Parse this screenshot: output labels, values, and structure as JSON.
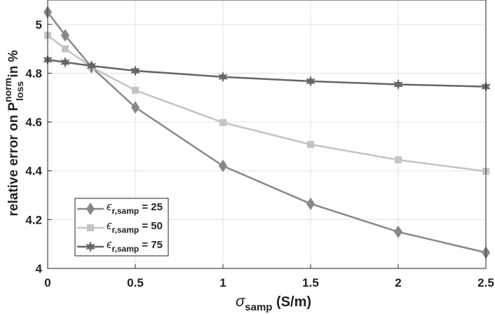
{
  "chart_data": {
    "type": "line",
    "x": [
      0,
      0.1,
      0.25,
      0.5,
      1,
      1.5,
      2,
      2.5
    ],
    "xlim": [
      0,
      2.5
    ],
    "ylim": [
      4,
      5.1
    ],
    "xticks": [
      "0",
      "0.5",
      "1",
      "1.5",
      "2",
      "2.5"
    ],
    "yticks": [
      "4",
      "4.2",
      "4.4",
      "4.6",
      "4.8",
      "5"
    ],
    "xlabel": {
      "symbol": "σ",
      "sub": "samp",
      "rest": " (S/m)"
    },
    "ylabel": {
      "pre": "relative error on P",
      "sup": "norm",
      "sub": "loss",
      "post": " in %"
    },
    "grid": true,
    "legend_position": "bottom-left",
    "series": [
      {
        "label": {
          "sym": "ϵ",
          "sub": "r,samp",
          "eq": " = 25"
        },
        "marker": "diamond",
        "color": "#888888",
        "values": [
          5.05,
          4.955,
          4.825,
          4.66,
          4.42,
          4.265,
          4.15,
          4.065
        ]
      },
      {
        "label": {
          "sym": "ϵ",
          "sub": "r,samp",
          "eq": " = 50"
        },
        "marker": "square",
        "color": "#c4c4c4",
        "values": [
          4.955,
          4.9,
          4.825,
          4.73,
          4.598,
          4.508,
          4.445,
          4.398
        ]
      },
      {
        "label": {
          "sym": "ϵ",
          "sub": "r,samp",
          "eq": " = 75"
        },
        "marker": "star",
        "color": "#666666",
        "values": [
          4.855,
          4.845,
          4.83,
          4.81,
          4.785,
          4.767,
          4.754,
          4.745
        ]
      }
    ]
  }
}
